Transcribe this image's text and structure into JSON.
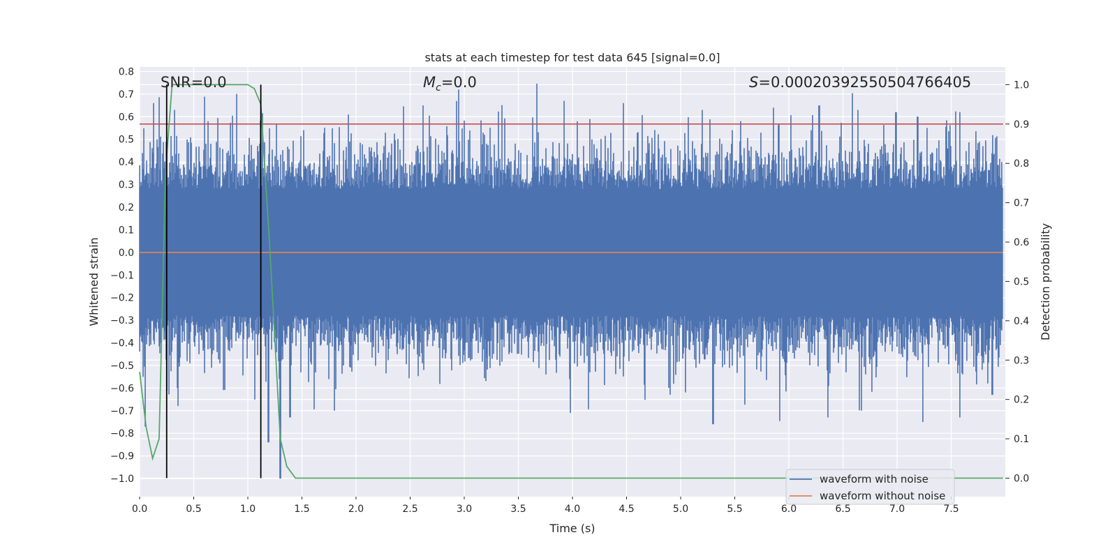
{
  "chart_data": {
    "type": "line",
    "title": "stats at each timestep for test data 645 [signal=0.0]",
    "xlabel": "Time (s)",
    "ylabel": "Whitened strain",
    "y2label": "Detection probability",
    "xlim": [
      0.0,
      8.0
    ],
    "ylim": [
      -1.08,
      0.82
    ],
    "y2lim": [
      -0.047,
      1.045
    ],
    "xticks": [
      0.0,
      0.5,
      1.0,
      1.5,
      2.0,
      2.5,
      3.0,
      3.5,
      4.0,
      4.5,
      5.0,
      5.5,
      6.0,
      6.5,
      7.0,
      7.5
    ],
    "xtick_labels": [
      "0.0",
      "0.5",
      "1.0",
      "1.5",
      "2.0",
      "2.5",
      "3.0",
      "3.5",
      "4.0",
      "4.5",
      "5.0",
      "5.5",
      "6.0",
      "6.5",
      "7.0",
      "7.5"
    ],
    "yticks": [
      0.8,
      0.7,
      0.6,
      0.5,
      0.4,
      0.3,
      0.2,
      0.1,
      0.0,
      -0.1,
      -0.2,
      -0.3,
      -0.4,
      -0.5,
      -0.6,
      -0.7,
      -0.8,
      -0.9,
      -1.0
    ],
    "ytick_labels": [
      "0.8",
      "0.7",
      "0.6",
      "0.5",
      "0.4",
      "0.3",
      "0.2",
      "0.1",
      "0.0",
      "−0.1",
      "−0.2",
      "−0.3",
      "−0.4",
      "−0.5",
      "−0.6",
      "−0.7",
      "−0.8",
      "−0.9",
      "−1.0"
    ],
    "y2ticks": [
      1.0,
      0.9,
      0.8,
      0.7,
      0.6,
      0.5,
      0.4,
      0.3,
      0.2,
      0.1,
      0.0
    ],
    "y2tick_labels": [
      "1.0",
      "0.9",
      "0.8",
      "0.7",
      "0.6",
      "0.5",
      "0.4",
      "0.3",
      "0.2",
      "0.1",
      "0.0"
    ],
    "grid": true,
    "annotations": {
      "snr": "SNR=0.0",
      "mc_symbol": "M",
      "mc_sub": "c",
      "mc_value": "=0.0",
      "s_symbol": "S",
      "s_value": "=0.00020392550504766405"
    },
    "series": [
      {
        "name": "waveform with noise",
        "axis": "left",
        "color": "#4c72b0",
        "description": "dense whitened noise, roughly between -0.45 and 0.45 with spikes to about 0.72 and -1.0",
        "x_range": [
          0.0,
          7.98
        ],
        "spikes_high": [
          [
            0.13,
            0.66
          ],
          [
            0.32,
            0.63
          ],
          [
            0.63,
            0.58
          ],
          [
            1.93,
            0.61
          ],
          [
            2.62,
            0.65
          ],
          [
            2.95,
            0.72
          ],
          [
            3.92,
            0.67
          ],
          [
            4.47,
            0.66
          ],
          [
            5.2,
            0.63
          ],
          [
            5.86,
            0.64
          ],
          [
            6.28,
            0.65
          ],
          [
            6.64,
            0.63
          ],
          [
            6.99,
            0.62
          ],
          [
            7.19,
            0.6
          ],
          [
            7.58,
            0.62
          ]
        ],
        "spikes_low": [
          [
            0.03,
            -0.55
          ],
          [
            0.35,
            -0.6
          ],
          [
            1.19,
            -0.84
          ],
          [
            1.3,
            -1.0
          ],
          [
            1.39,
            -0.73
          ],
          [
            1.8,
            -0.7
          ],
          [
            3.98,
            -0.71
          ],
          [
            5.3,
            -0.76
          ],
          [
            6.36,
            -0.73
          ],
          [
            6.67,
            -0.7
          ],
          [
            7.24,
            -0.75
          ],
          [
            7.58,
            -0.73
          ],
          [
            7.88,
            -0.63
          ]
        ]
      },
      {
        "name": "waveform without noise",
        "axis": "left",
        "color": "#dd8452",
        "x": [
          0.0,
          7.98
        ],
        "y": [
          0.0,
          0.0
        ]
      },
      {
        "name": "detection probability",
        "axis": "right",
        "color": "#55a868",
        "x": [
          0.0,
          0.06,
          0.12,
          0.18,
          0.24,
          0.3,
          0.5,
          1.0,
          1.06,
          1.12,
          1.2,
          1.3,
          1.36,
          1.44,
          7.98
        ],
        "y": [
          0.27,
          0.13,
          0.05,
          0.1,
          0.78,
          1.0,
          1.0,
          1.0,
          0.99,
          0.95,
          0.6,
          0.1,
          0.03,
          0.0,
          0.0
        ]
      },
      {
        "name": "detection threshold",
        "axis": "right",
        "color": "#c44e52",
        "x": [
          0.0,
          7.98
        ],
        "y": [
          0.9,
          0.9
        ]
      }
    ],
    "vlines": [
      {
        "x": 0.25,
        "y2_range": [
          0.0,
          1.0
        ],
        "color": "#000000"
      },
      {
        "x": 1.12,
        "y2_range": [
          0.0,
          1.0
        ],
        "color": "#000000"
      }
    ],
    "legend": {
      "location": "lower-right",
      "entries": [
        {
          "label": "waveform with noise",
          "color": "#4c72b0"
        },
        {
          "label": "waveform without noise",
          "color": "#dd8452"
        }
      ]
    },
    "colors": {
      "plot_background": "#eaeaf2",
      "grid": "#ffffff"
    }
  }
}
